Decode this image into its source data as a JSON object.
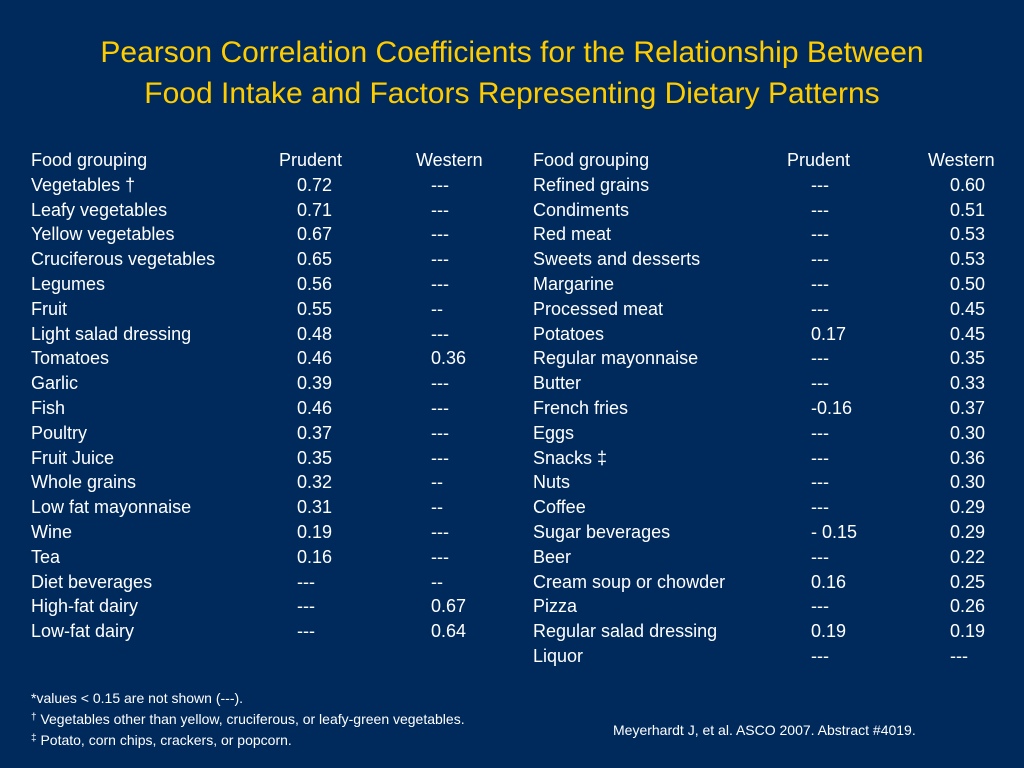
{
  "title": {
    "line1": "Pearson Correlation Coefficients for the Relationship Between",
    "line2": "Food Intake and Factors Representing Dietary Patterns"
  },
  "headers": {
    "food": "Food grouping",
    "prudent": "Prudent",
    "western": "Western"
  },
  "left_rows": [
    [
      "Vegetables †",
      "0.72",
      "---"
    ],
    [
      "Leafy vegetables",
      "0.71",
      "---"
    ],
    [
      "Yellow vegetables",
      "0.67",
      "---"
    ],
    [
      "Cruciferous vegetables",
      "0.65",
      "---"
    ],
    [
      "Legumes",
      "0.56",
      "---"
    ],
    [
      "Fruit",
      "0.55",
      "--"
    ],
    [
      "Light salad dressing",
      "0.48",
      "---"
    ],
    [
      "Tomatoes",
      "0.46",
      "0.36"
    ],
    [
      "Garlic",
      "0.39",
      "---"
    ],
    [
      "Fish",
      "0.46",
      "---"
    ],
    [
      "Poultry",
      "0.37",
      "---"
    ],
    [
      "Fruit Juice",
      "0.35",
      "---"
    ],
    [
      "Whole grains",
      "0.32",
      "--"
    ],
    [
      "Low fat mayonnaise",
      "0.31",
      "--"
    ],
    [
      "Wine",
      "0.19",
      "---"
    ],
    [
      "Tea",
      "0.16",
      "---"
    ],
    [
      "Diet beverages",
      "---",
      "--"
    ],
    [
      "High-fat dairy",
      "---",
      "0.67"
    ],
    [
      "Low-fat dairy",
      "---",
      "0.64"
    ]
  ],
  "right_rows": [
    [
      "Refined grains",
      "---",
      "0.60"
    ],
    [
      "Condiments",
      "---",
      "0.51"
    ],
    [
      "Red meat",
      "---",
      "0.53"
    ],
    [
      "Sweets and desserts",
      "---",
      "0.53"
    ],
    [
      "Margarine",
      "---",
      "0.50"
    ],
    [
      "Processed meat",
      "---",
      "0.45"
    ],
    [
      "Potatoes",
      "0.17",
      "0.45"
    ],
    [
      "Regular mayonnaise",
      "---",
      "0.35"
    ],
    [
      "Butter",
      "---",
      "0.33"
    ],
    [
      "French fries",
      "-0.16",
      "0.37"
    ],
    [
      "Eggs",
      "---",
      "0.30"
    ],
    [
      "Snacks ‡",
      "---",
      "0.36"
    ],
    [
      "Nuts",
      "---",
      "0.30"
    ],
    [
      "Coffee",
      "---",
      "0.29"
    ],
    [
      "Sugar beverages",
      "- 0.15",
      "0.29"
    ],
    [
      "Beer",
      "---",
      "0.22"
    ],
    [
      "Cream soup or chowder",
      "0.16",
      "0.25"
    ],
    [
      "Pizza",
      "---",
      "0.26"
    ],
    [
      "Regular salad dressing",
      "0.19",
      "0.19"
    ],
    [
      "Liquor",
      "---",
      " ---"
    ]
  ],
  "footnotes": {
    "values_note": "*values < 0.15 are not shown (---).",
    "dagger_symbol": "†",
    "dagger_text": " Vegetables other than yellow, cruciferous, or leafy-green vegetables.",
    "ddagger_symbol": "‡",
    "ddagger_text": " Potato, corn chips, crackers, or popcorn."
  },
  "citation": "Meyerhardt J, et al. ASCO 2007. Abstract #4019."
}
